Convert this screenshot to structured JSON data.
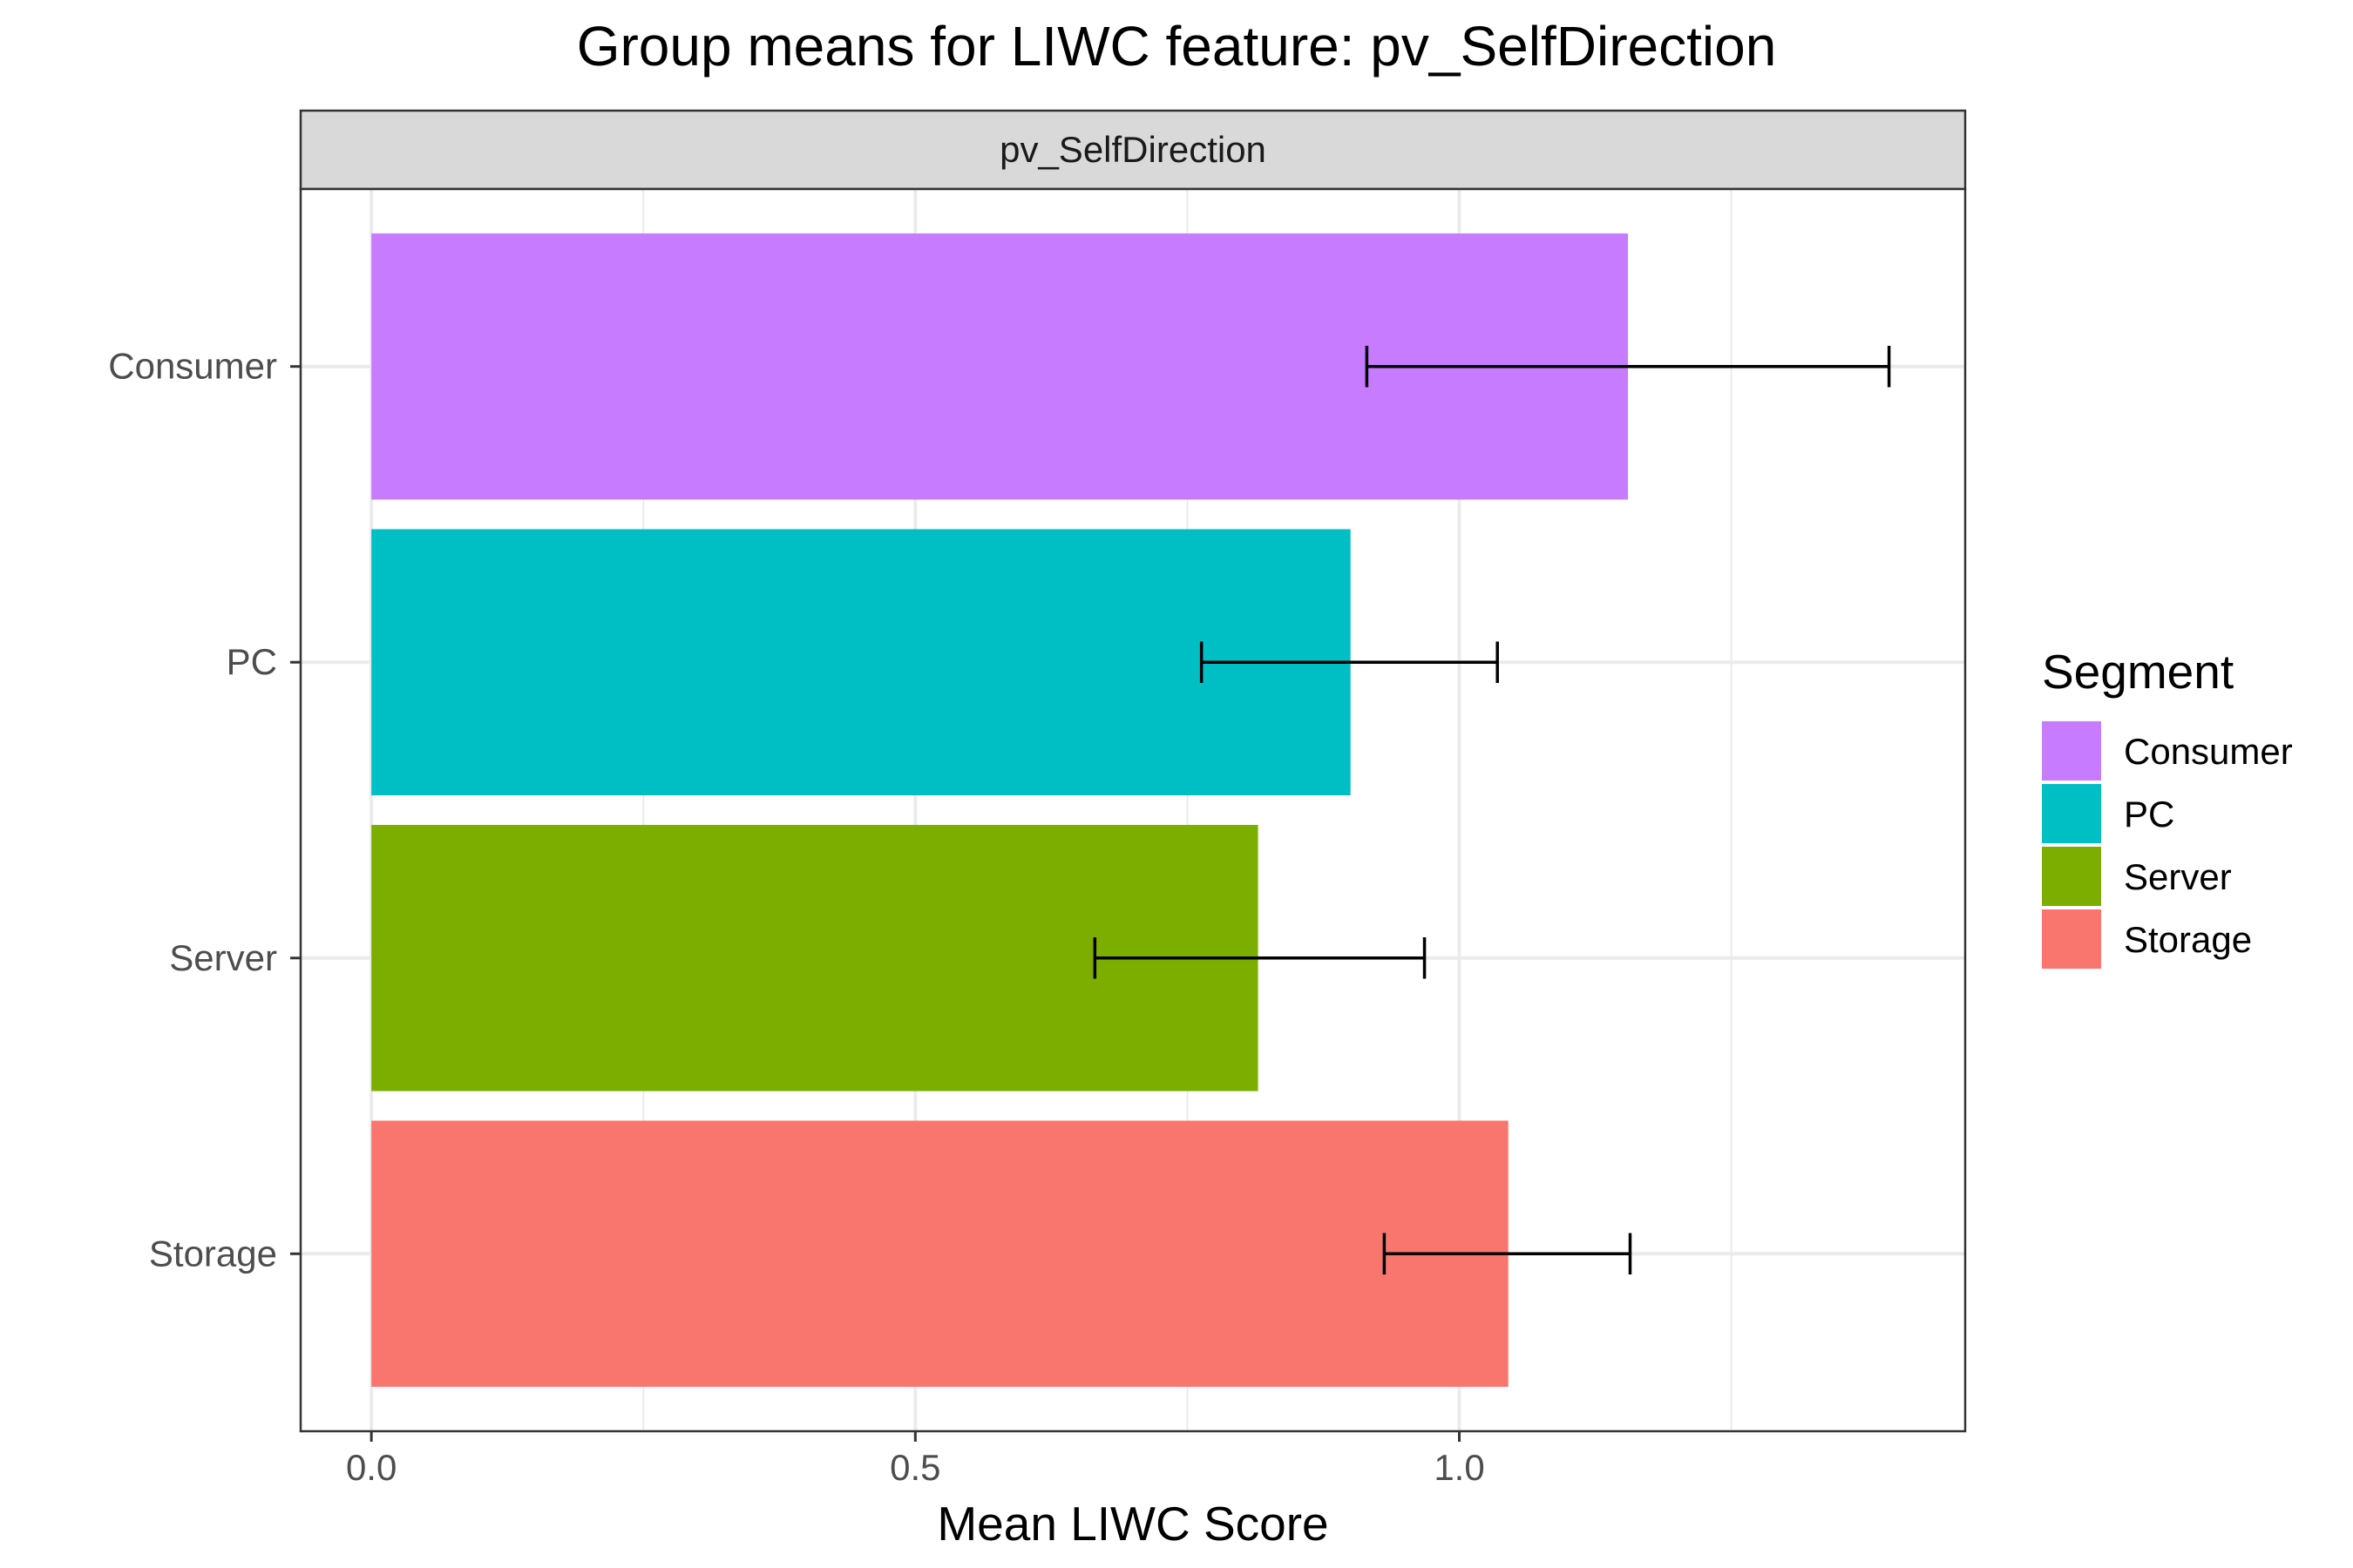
{
  "chart_data": {
    "type": "bar",
    "orientation": "horizontal",
    "title": "Group means for LIWC feature: pv_SelfDirection",
    "facet_label": "pv_SelfDirection",
    "xlabel": "Mean LIWC Score",
    "ylabel": "",
    "xlim": [
      -0.065,
      1.465
    ],
    "x_ticks": [
      0.0,
      0.5,
      1.0
    ],
    "x_tick_labels": [
      "0.0",
      "0.5",
      "1.0"
    ],
    "grid": true,
    "legend": {
      "title": "Segment",
      "position": "right",
      "entries": [
        "Consumer",
        "PC",
        "Server",
        "Storage"
      ]
    },
    "categories": [
      "Consumer",
      "PC",
      "Server",
      "Storage"
    ],
    "values": [
      1.155,
      0.9,
      0.815,
      1.045
    ],
    "error_low": [
      0.915,
      0.763,
      0.665,
      0.931
    ],
    "error_high": [
      1.395,
      1.035,
      0.968,
      1.157
    ],
    "colors": [
      "#C77CFF",
      "#00BFC4",
      "#7CAE00",
      "#F8766D"
    ]
  }
}
